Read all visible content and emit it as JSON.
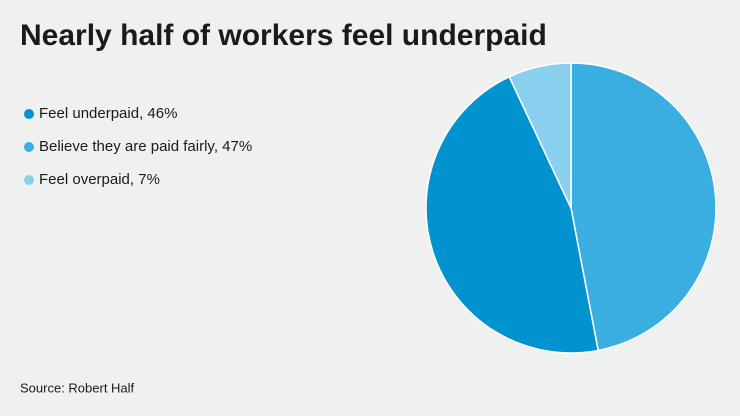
{
  "chart_data": {
    "type": "pie",
    "title": "Nearly half of workers feel underpaid",
    "categories": [
      "Feel underpaid, 46%",
      "Believe they are paid fairly, 47%",
      "Feel overpaid, 7%"
    ],
    "values": [
      46,
      47,
      7
    ],
    "colors": [
      "#0093d0",
      "#3aaee0",
      "#89d0ee"
    ],
    "source": "Source: Robert Half"
  }
}
